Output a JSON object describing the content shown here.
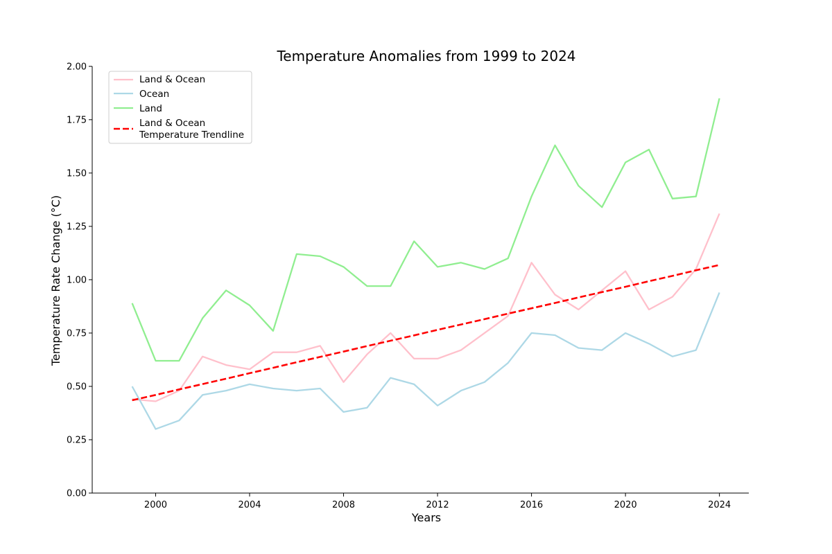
{
  "chart_data": {
    "type": "line",
    "title": "Temperature Anomalies from 1999 to 2024",
    "xlabel": "Years",
    "ylabel": "Temperature Rate Change (°C)",
    "xlim": [
      1997.3,
      2025.25
    ],
    "ylim": [
      0,
      2.1
    ],
    "x_ticks": [
      2000,
      2004,
      2008,
      2012,
      2016,
      2020,
      2024
    ],
    "y_ticks": [
      "0.00",
      "0.25",
      "0.50",
      "0.75",
      "1.00",
      "1.25",
      "1.50",
      "1.75",
      "2.00"
    ],
    "x": [
      1999,
      2000,
      2001,
      2002,
      2003,
      2004,
      2005,
      2006,
      2007,
      2008,
      2009,
      2010,
      2011,
      2012,
      2013,
      2014,
      2015,
      2016,
      2017,
      2018,
      2019,
      2020,
      2021,
      2022,
      2023,
      2024
    ],
    "series": [
      {
        "name": "Land & Ocean",
        "color": "#ffc0cb",
        "style": "solid",
        "values": [
          0.44,
          0.43,
          0.48,
          0.64,
          0.6,
          0.58,
          0.66,
          0.66,
          0.69,
          0.52,
          0.65,
          0.75,
          0.63,
          0.63,
          0.67,
          0.75,
          0.83,
          1.08,
          0.93,
          0.86,
          0.95,
          1.04,
          0.86,
          0.92,
          1.05,
          1.31
        ]
      },
      {
        "name": "Ocean",
        "color": "#add8e6",
        "style": "solid",
        "values": [
          0.5,
          0.3,
          0.34,
          0.46,
          0.48,
          0.51,
          0.49,
          0.48,
          0.49,
          0.38,
          0.4,
          0.54,
          0.51,
          0.41,
          0.48,
          0.52,
          0.61,
          0.75,
          0.74,
          0.68,
          0.67,
          0.75,
          0.7,
          0.64,
          0.67,
          0.94
        ]
      },
      {
        "name": "Land",
        "color": "#90ee90",
        "style": "solid",
        "values": [
          0.89,
          0.62,
          0.62,
          0.82,
          0.95,
          0.88,
          0.76,
          1.12,
          1.11,
          1.06,
          0.97,
          0.97,
          1.18,
          1.06,
          1.08,
          1.05,
          1.1,
          1.39,
          1.63,
          1.44,
          1.34,
          1.55,
          1.61,
          1.38,
          1.39,
          1.85
        ]
      },
      {
        "name": "Land & Ocean\nTemperature Trendline",
        "color": "#ff0000",
        "style": "dashed",
        "values": [
          0.435,
          0.46,
          0.486,
          0.511,
          0.536,
          0.562,
          0.587,
          0.613,
          0.638,
          0.663,
          0.689,
          0.714,
          0.739,
          0.765,
          0.79,
          0.815,
          0.841,
          0.866,
          0.891,
          0.917,
          0.942,
          0.967,
          0.993,
          1.018,
          1.044,
          1.069
        ]
      }
    ],
    "legend_position": "upper-left",
    "grid": false
  }
}
